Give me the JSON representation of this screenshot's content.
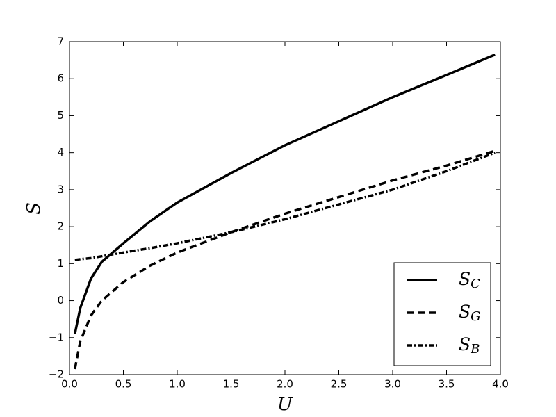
{
  "chart_data": {
    "type": "line",
    "xlabel": "U",
    "ylabel": "S",
    "x": [
      0.05,
      0.1,
      0.2,
      0.3,
      0.5,
      0.75,
      1.0,
      1.5,
      2.0,
      2.5,
      3.0,
      3.5,
      3.95
    ],
    "series": [
      {
        "name": "S_C",
        "color": "#000000",
        "linestyle": "solid",
        "values": [
          -0.9,
          -0.2,
          0.6,
          1.05,
          1.55,
          2.15,
          2.65,
          3.45,
          4.2,
          4.85,
          5.5,
          6.1,
          6.65
        ]
      },
      {
        "name": "S_G",
        "color": "#000000",
        "linestyle": "dashed",
        "values": [
          -1.85,
          -1.1,
          -0.4,
          0.0,
          0.5,
          0.95,
          1.3,
          1.85,
          2.35,
          2.8,
          3.25,
          3.65,
          4.05
        ]
      },
      {
        "name": "S_B",
        "color": "#000000",
        "linestyle": "dashdot",
        "values": [
          1.1,
          1.12,
          1.15,
          1.2,
          1.3,
          1.42,
          1.55,
          1.85,
          2.2,
          2.6,
          3.0,
          3.5,
          4.0
        ]
      }
    ],
    "xlim": [
      0,
      4
    ],
    "xticks": [
      {
        "value": 0,
        "label": "0.0"
      },
      0.5,
      {
        "value": 1,
        "label": "1.0"
      },
      1.5,
      {
        "value": 2,
        "label": "2.0"
      },
      2.5,
      {
        "value": 3,
        "label": "3.0"
      },
      3.5,
      {
        "value": 4,
        "label": "4.0"
      }
    ],
    "ylim": [
      -2,
      7
    ],
    "yticks": [
      {
        "value": -2,
        "label": "−2"
      },
      {
        "value": -1,
        "label": "−1"
      },
      0,
      1,
      2,
      3,
      4,
      5,
      6,
      7
    ],
    "legend": "lower right",
    "grid": false
  }
}
